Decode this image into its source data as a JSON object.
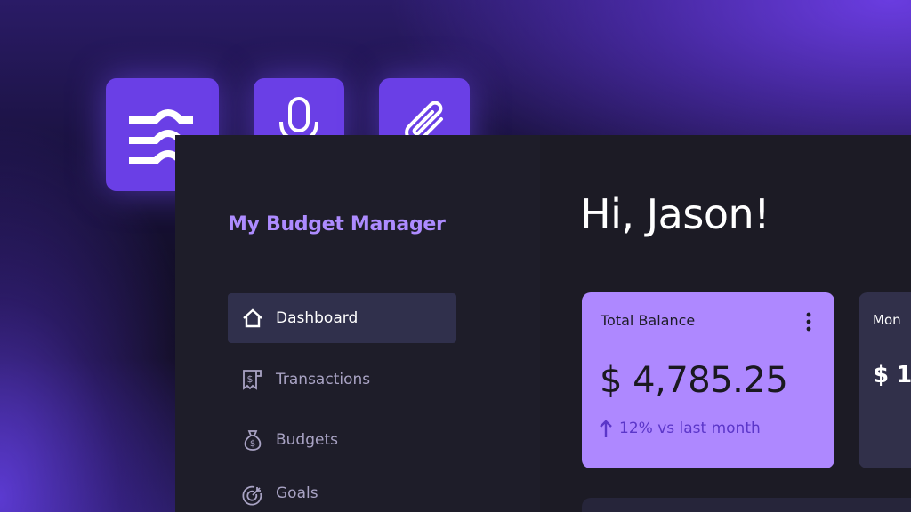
{
  "toolbar": {
    "icons": [
      "layers-wave-icon",
      "microphone-icon",
      "paperclip-icon"
    ]
  },
  "sidebar": {
    "brand": "My Budget Manager",
    "items": [
      {
        "label": "Dashboard",
        "icon": "home-icon",
        "active": true
      },
      {
        "label": "Transactions",
        "icon": "receipt-icon"
      },
      {
        "label": "Budgets",
        "icon": "money-bag-icon"
      },
      {
        "label": "Goals",
        "icon": "target-icon"
      }
    ]
  },
  "main": {
    "greeting": "Hi, Jason!",
    "cards": [
      {
        "title": "Total Balance",
        "amount": "$ 4,785.25",
        "trend": "12% vs last month",
        "trend_icon": "arrow-up-icon"
      },
      {
        "title": "Mon",
        "amount": "$ 1"
      }
    ]
  },
  "colors": {
    "accent": "#6a3fe6",
    "card": "#ae88ff",
    "brand_text": "#ad8bff"
  }
}
